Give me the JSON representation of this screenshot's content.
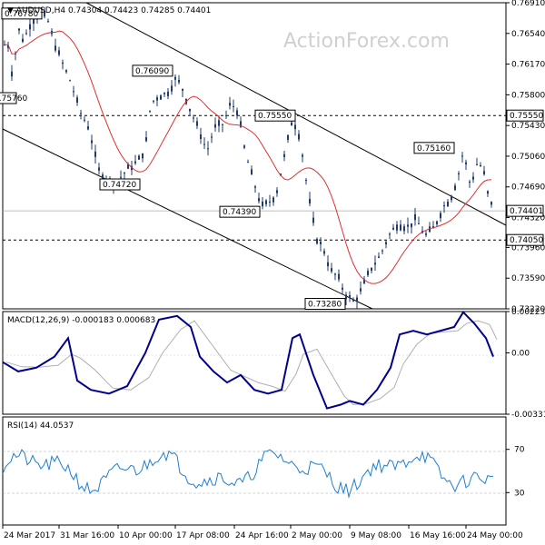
{
  "header": {
    "symbol": "AUDUSD,H4",
    "ohlc": "0.74304 0.74423 0.74285 0.74401",
    "watermark": "ActionForex.com"
  },
  "colors": {
    "candle": "#1f3a6b",
    "ma": "#e03030",
    "macd": "#00008b",
    "signal": "#b0b0b0",
    "rsi": "#1e7fd0",
    "channel": "#000000"
  },
  "chart_data": [
    {
      "type": "candlestick",
      "title": "AUDUSD,H4 0.74304 0.74423 0.74285 0.74401",
      "ylim": [
        0.7322,
        0.7691
      ],
      "y_ticks": [
        "0.76910",
        "0.76540",
        "0.76170",
        "0.75800",
        "0.75430",
        "0.75060",
        "0.74690",
        "0.74320",
        "0.73960",
        "0.73590",
        "0.73220"
      ],
      "current_price": "0.74401",
      "horizontal_levels": [
        {
          "value": 0.7555,
          "label": "0.75550",
          "style": "dashed"
        },
        {
          "value": 0.7405,
          "label": "0.74050",
          "style": "dashed"
        }
      ],
      "annotations": [
        {
          "label": "0.76780",
          "value": 0.7678
        },
        {
          "label": "0.75760",
          "value": 0.7576
        },
        {
          "label": "0.76090",
          "value": 0.7609
        },
        {
          "label": "0.74720",
          "value": 0.7472
        },
        {
          "label": "0.75550",
          "value": 0.7555
        },
        {
          "label": "0.74390",
          "value": 0.7439
        },
        {
          "label": "0.73280",
          "value": 0.7328
        },
        {
          "label": "0.75160",
          "value": 0.7516
        }
      ],
      "moving_average": "red line",
      "channel": "descending parallel channel"
    },
    {
      "type": "line",
      "title": "MACD(12,26,9) -0.000183 0.000683",
      "y_ticks": [
        "0.002236",
        "0.00",
        "-0.003316"
      ],
      "ylim": [
        -0.003316,
        0.002236
      ],
      "series": [
        {
          "name": "MACD"
        },
        {
          "name": "Signal"
        }
      ]
    },
    {
      "type": "line",
      "title": "RSI(14) 44.0537",
      "y_ticks": [
        "70",
        "30"
      ],
      "ylim": [
        0,
        100
      ],
      "levels": [
        70,
        30
      ],
      "series": [
        {
          "name": "RSI(14)"
        }
      ]
    }
  ],
  "x_axis": {
    "tick_labels": [
      "24 Mar 2017",
      "31 Mar 16:00",
      "10 Apr 00:00",
      "17 Apr 08:00",
      "24 Apr 16:00",
      "2 May 00:00",
      "9 May 08:00",
      "16 May 16:00",
      "24 May 00:00"
    ]
  }
}
